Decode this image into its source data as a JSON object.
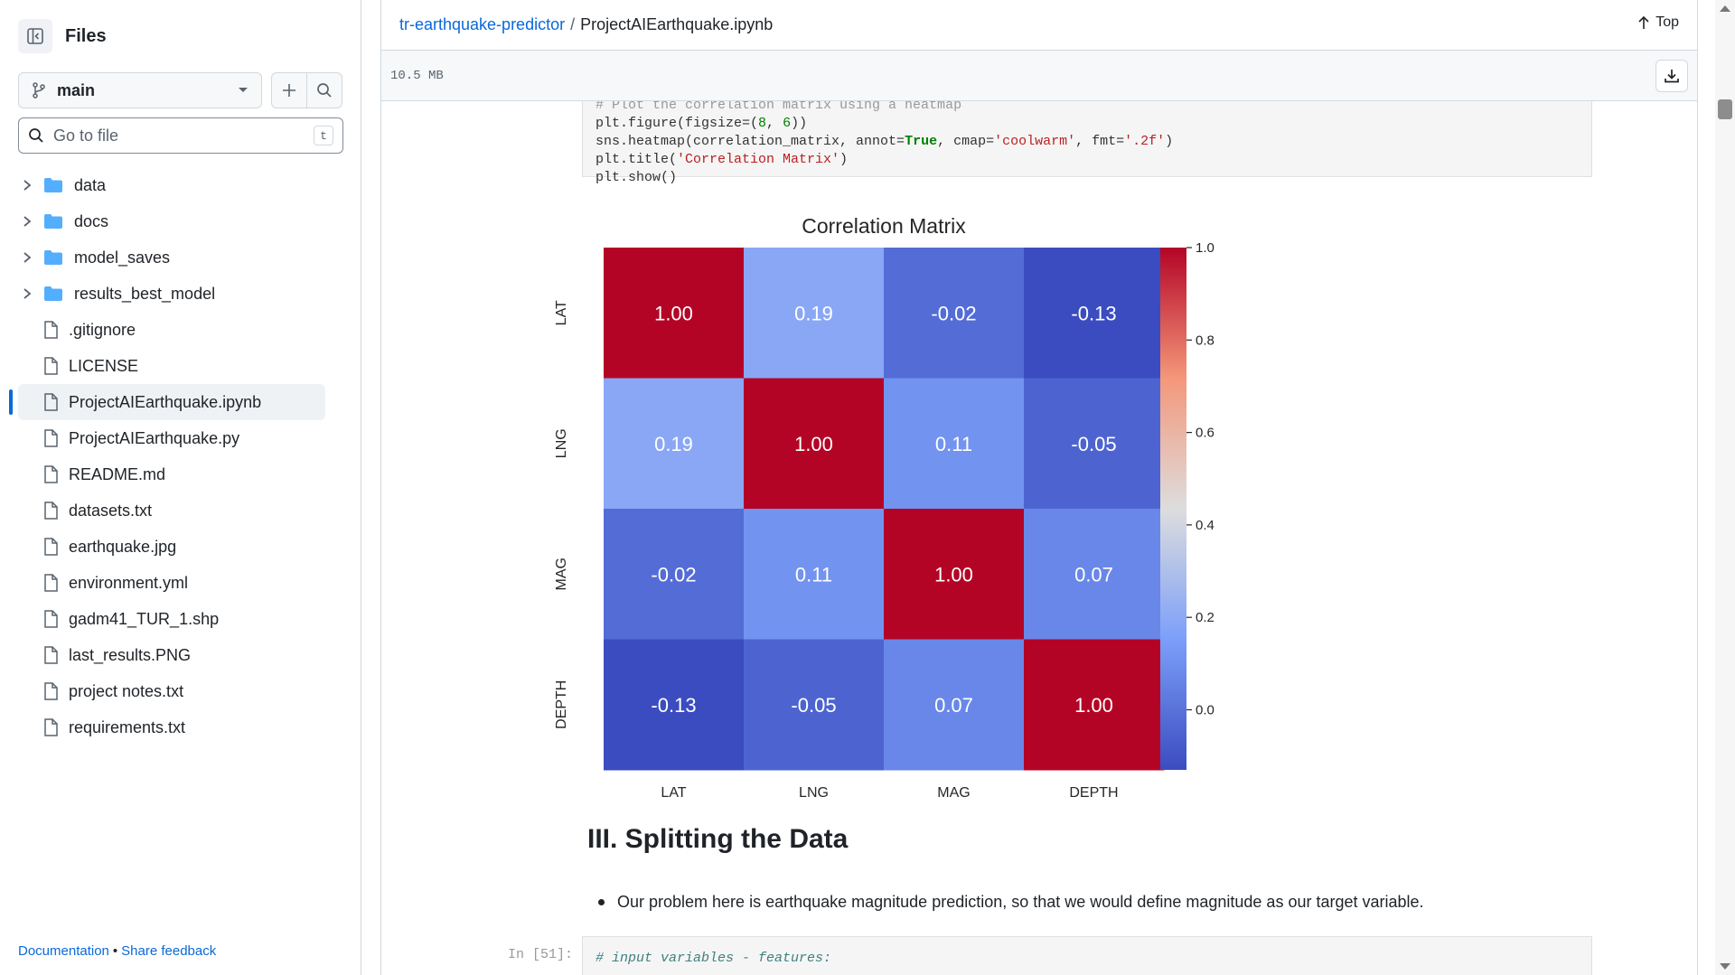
{
  "sidebar": {
    "title": "Files",
    "branch": "main",
    "search_placeholder": "Go to file",
    "search_shortcut": "t",
    "items": [
      {
        "name": "data",
        "type": "folder"
      },
      {
        "name": "docs",
        "type": "folder"
      },
      {
        "name": "model_saves",
        "type": "folder"
      },
      {
        "name": "results_best_model",
        "type": "folder"
      },
      {
        "name": ".gitignore",
        "type": "file"
      },
      {
        "name": "LICENSE",
        "type": "file"
      },
      {
        "name": "ProjectAIEarthquake.ipynb",
        "type": "file",
        "selected": true
      },
      {
        "name": "ProjectAIEarthquake.py",
        "type": "file"
      },
      {
        "name": "README.md",
        "type": "file"
      },
      {
        "name": "datasets.txt",
        "type": "file"
      },
      {
        "name": "earthquake.jpg",
        "type": "file"
      },
      {
        "name": "environment.yml",
        "type": "file"
      },
      {
        "name": "gadm41_TUR_1.shp",
        "type": "file"
      },
      {
        "name": "last_results.PNG",
        "type": "file"
      },
      {
        "name": "project notes.txt",
        "type": "file"
      },
      {
        "name": "requirements.txt",
        "type": "file"
      }
    ],
    "footer": {
      "documentation": "Documentation",
      "separator": "•",
      "feedback": "Share feedback"
    }
  },
  "header": {
    "repo": "tr-earthquake-predictor",
    "separator": "/",
    "file": "ProjectAIEarthquake.ipynb",
    "top_label": "Top",
    "file_size": "10.5 MB"
  },
  "notebook": {
    "code_cell_1": {
      "line0": "# Plot the correlation matrix using a heatmap",
      "line1_a": "plt.figure(figsize=(",
      "line1_n1": "8",
      "line1_b": ", ",
      "line1_n2": "6",
      "line1_c": "))",
      "line2_a": "sns.heatmap(correlation_matrix, annot=",
      "line2_kw": "True",
      "line2_b": ", cmap=",
      "line2_s1": "'coolwarm'",
      "line2_c": ", fmt=",
      "line2_s2": "'.2f'",
      "line2_d": ")",
      "line3_a": "plt.title(",
      "line3_s": "'Correlation Matrix'",
      "line3_b": ")",
      "line4": "plt.show()"
    },
    "section_heading": "III. Splitting the Data",
    "bullet": "Our problem here is earthquake magnitude prediction, so that we would define magnitude as our target variable.",
    "prompt": "In [51]:",
    "code_cell_2": {
      "line1": "# input variables - features:"
    }
  },
  "chart_data": {
    "type": "heatmap",
    "title": "Correlation Matrix",
    "x_labels": [
      "LAT",
      "LNG",
      "MAG",
      "DEPTH"
    ],
    "y_labels": [
      "LAT",
      "LNG",
      "MAG",
      "DEPTH"
    ],
    "values": [
      [
        1.0,
        0.19,
        -0.02,
        -0.13
      ],
      [
        0.19,
        1.0,
        0.11,
        -0.05
      ],
      [
        -0.02,
        0.11,
        1.0,
        0.07
      ],
      [
        -0.13,
        -0.05,
        0.07,
        1.0
      ]
    ],
    "colormap": "coolwarm",
    "colorbar_range": [
      -0.13,
      1.0
    ],
    "colorbar_ticks": [
      "1.0",
      "0.8",
      "0.6",
      "0.4",
      "0.2",
      "0.0"
    ],
    "colorbar_tick_values": [
      1.0,
      0.8,
      0.6,
      0.4,
      0.2,
      0.0
    ],
    "format": ".2f"
  }
}
